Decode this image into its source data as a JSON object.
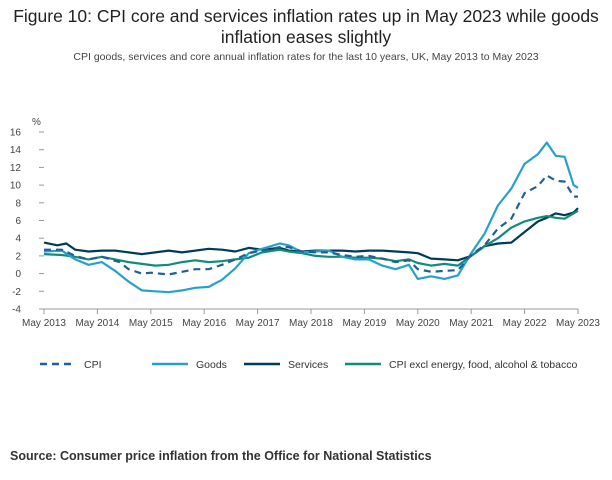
{
  "title": "Figure 10: CPI core and services inflation rates up in May 2023 while goods inflation eases slightly",
  "subtitle": "CPI goods, services and core annual inflation rates for the last 10 years, UK, May 2013 to May 2023",
  "source": "Source: Consumer price inflation from the Office for National Statistics",
  "colors": {
    "cpi": "#206095",
    "goods": "#27a0cc",
    "services": "#003c57",
    "core": "#118c7b"
  },
  "chart_data": {
    "type": "line",
    "ylabel": "%",
    "ylim": [
      -4,
      16
    ],
    "yticks": [
      -4,
      -2,
      0,
      2,
      4,
      6,
      8,
      10,
      12,
      14,
      16
    ],
    "xlim": [
      "2013-05",
      "2023-05"
    ],
    "xticks": [
      "May 2013",
      "May 2014",
      "May 2015",
      "May 2016",
      "May 2017",
      "May 2018",
      "May 2019",
      "May 2020",
      "May 2021",
      "May 2022",
      "May 2023"
    ],
    "grid": false,
    "legend_position": "bottom",
    "series": [
      {
        "name": "CPI",
        "style": "dashed",
        "color": "#206095",
        "points": [
          [
            "2013-05",
            2.7
          ],
          [
            "2013-09",
            2.7
          ],
          [
            "2013-12",
            2.0
          ],
          [
            "2014-03",
            1.6
          ],
          [
            "2014-06",
            1.9
          ],
          [
            "2014-10",
            1.3
          ],
          [
            "2014-12",
            0.5
          ],
          [
            "2015-03",
            0.0
          ],
          [
            "2015-05",
            0.1
          ],
          [
            "2015-09",
            -0.1
          ],
          [
            "2015-12",
            0.2
          ],
          [
            "2016-03",
            0.5
          ],
          [
            "2016-06",
            0.5
          ],
          [
            "2016-09",
            1.0
          ],
          [
            "2016-12",
            1.6
          ],
          [
            "2017-03",
            2.3
          ],
          [
            "2017-06",
            2.6
          ],
          [
            "2017-10",
            3.0
          ],
          [
            "2017-12",
            3.0
          ],
          [
            "2018-03",
            2.5
          ],
          [
            "2018-06",
            2.4
          ],
          [
            "2018-09",
            2.4
          ],
          [
            "2018-12",
            2.1
          ],
          [
            "2019-03",
            1.9
          ],
          [
            "2019-06",
            2.0
          ],
          [
            "2019-09",
            1.7
          ],
          [
            "2019-12",
            1.3
          ],
          [
            "2020-03",
            1.5
          ],
          [
            "2020-05",
            0.5
          ],
          [
            "2020-08",
            0.2
          ],
          [
            "2020-11",
            0.3
          ],
          [
            "2021-02",
            0.4
          ],
          [
            "2021-05",
            2.1
          ],
          [
            "2021-08",
            3.2
          ],
          [
            "2021-11",
            5.1
          ],
          [
            "2022-02",
            6.2
          ],
          [
            "2022-05",
            9.1
          ],
          [
            "2022-08",
            9.9
          ],
          [
            "2022-10",
            11.1
          ],
          [
            "2022-12",
            10.5
          ],
          [
            "2023-02",
            10.4
          ],
          [
            "2023-04",
            8.7
          ],
          [
            "2023-05",
            8.7
          ]
        ]
      },
      {
        "name": "Goods",
        "style": "solid",
        "color": "#27a0cc",
        "points": [
          [
            "2013-05",
            2.5
          ],
          [
            "2013-09",
            2.6
          ],
          [
            "2013-12",
            1.6
          ],
          [
            "2014-03",
            1.0
          ],
          [
            "2014-06",
            1.3
          ],
          [
            "2014-09",
            0.3
          ],
          [
            "2014-12",
            -0.9
          ],
          [
            "2015-03",
            -1.9
          ],
          [
            "2015-06",
            -2.0
          ],
          [
            "2015-09",
            -2.1
          ],
          [
            "2015-12",
            -1.9
          ],
          [
            "2016-03",
            -1.6
          ],
          [
            "2016-06",
            -1.5
          ],
          [
            "2016-09",
            -0.7
          ],
          [
            "2016-12",
            0.6
          ],
          [
            "2017-03",
            2.3
          ],
          [
            "2017-06",
            2.8
          ],
          [
            "2017-10",
            3.4
          ],
          [
            "2017-12",
            3.2
          ],
          [
            "2018-03",
            2.4
          ],
          [
            "2018-06",
            2.5
          ],
          [
            "2018-09",
            2.6
          ],
          [
            "2018-12",
            1.9
          ],
          [
            "2019-03",
            1.6
          ],
          [
            "2019-06",
            1.6
          ],
          [
            "2019-09",
            0.9
          ],
          [
            "2019-12",
            0.5
          ],
          [
            "2020-03",
            1.0
          ],
          [
            "2020-05",
            -0.6
          ],
          [
            "2020-08",
            -0.3
          ],
          [
            "2020-11",
            -0.6
          ],
          [
            "2021-02",
            -0.2
          ],
          [
            "2021-05",
            2.3
          ],
          [
            "2021-08",
            4.5
          ],
          [
            "2021-11",
            7.7
          ],
          [
            "2022-02",
            9.6
          ],
          [
            "2022-05",
            12.4
          ],
          [
            "2022-08",
            13.5
          ],
          [
            "2022-10",
            14.8
          ],
          [
            "2022-12",
            13.3
          ],
          [
            "2023-02",
            13.2
          ],
          [
            "2023-04",
            10.0
          ],
          [
            "2023-05",
            9.7
          ]
        ]
      },
      {
        "name": "Services",
        "style": "solid",
        "color": "#003c57",
        "points": [
          [
            "2013-05",
            3.5
          ],
          [
            "2013-08",
            3.2
          ],
          [
            "2013-10",
            3.4
          ],
          [
            "2013-12",
            2.7
          ],
          [
            "2014-03",
            2.5
          ],
          [
            "2014-06",
            2.6
          ],
          [
            "2014-09",
            2.6
          ],
          [
            "2014-12",
            2.4
          ],
          [
            "2015-03",
            2.2
          ],
          [
            "2015-06",
            2.4
          ],
          [
            "2015-09",
            2.6
          ],
          [
            "2015-12",
            2.4
          ],
          [
            "2016-03",
            2.6
          ],
          [
            "2016-06",
            2.8
          ],
          [
            "2016-09",
            2.7
          ],
          [
            "2016-12",
            2.5
          ],
          [
            "2017-03",
            2.9
          ],
          [
            "2017-06",
            2.7
          ],
          [
            "2017-10",
            2.9
          ],
          [
            "2017-12",
            2.6
          ],
          [
            "2018-03",
            2.5
          ],
          [
            "2018-06",
            2.6
          ],
          [
            "2018-09",
            2.6
          ],
          [
            "2018-12",
            2.6
          ],
          [
            "2019-03",
            2.5
          ],
          [
            "2019-06",
            2.6
          ],
          [
            "2019-09",
            2.6
          ],
          [
            "2019-12",
            2.5
          ],
          [
            "2020-03",
            2.4
          ],
          [
            "2020-05",
            2.3
          ],
          [
            "2020-08",
            1.7
          ],
          [
            "2020-11",
            1.6
          ],
          [
            "2021-02",
            1.5
          ],
          [
            "2021-05",
            2.0
          ],
          [
            "2021-08",
            3.1
          ],
          [
            "2021-11",
            3.4
          ],
          [
            "2022-02",
            3.5
          ],
          [
            "2022-05",
            4.7
          ],
          [
            "2022-08",
            5.9
          ],
          [
            "2022-10",
            6.3
          ],
          [
            "2022-12",
            6.8
          ],
          [
            "2023-02",
            6.6
          ],
          [
            "2023-04",
            6.9
          ],
          [
            "2023-05",
            7.4
          ]
        ]
      },
      {
        "name": "CPI excl energy, food, alcohol & tobacco",
        "style": "solid",
        "color": "#118c7b",
        "points": [
          [
            "2013-05",
            2.2
          ],
          [
            "2013-09",
            2.1
          ],
          [
            "2013-12",
            1.9
          ],
          [
            "2014-03",
            1.6
          ],
          [
            "2014-06",
            1.9
          ],
          [
            "2014-09",
            1.6
          ],
          [
            "2014-12",
            1.3
          ],
          [
            "2015-03",
            1.1
          ],
          [
            "2015-06",
            0.9
          ],
          [
            "2015-09",
            1.0
          ],
          [
            "2015-12",
            1.3
          ],
          [
            "2016-03",
            1.5
          ],
          [
            "2016-06",
            1.3
          ],
          [
            "2016-09",
            1.4
          ],
          [
            "2016-12",
            1.6
          ],
          [
            "2017-03",
            1.8
          ],
          [
            "2017-06",
            2.4
          ],
          [
            "2017-10",
            2.7
          ],
          [
            "2017-12",
            2.5
          ],
          [
            "2018-03",
            2.3
          ],
          [
            "2018-06",
            2.0
          ],
          [
            "2018-09",
            1.9
          ],
          [
            "2018-12",
            1.9
          ],
          [
            "2019-03",
            1.8
          ],
          [
            "2019-06",
            1.8
          ],
          [
            "2019-09",
            1.7
          ],
          [
            "2019-12",
            1.4
          ],
          [
            "2020-03",
            1.6
          ],
          [
            "2020-05",
            1.2
          ],
          [
            "2020-08",
            0.9
          ],
          [
            "2020-11",
            1.1
          ],
          [
            "2021-02",
            0.9
          ],
          [
            "2021-05",
            2.0
          ],
          [
            "2021-08",
            3.1
          ],
          [
            "2021-11",
            4.0
          ],
          [
            "2022-02",
            5.2
          ],
          [
            "2022-05",
            5.9
          ],
          [
            "2022-08",
            6.3
          ],
          [
            "2022-10",
            6.5
          ],
          [
            "2022-12",
            6.3
          ],
          [
            "2023-02",
            6.2
          ],
          [
            "2023-04",
            6.8
          ],
          [
            "2023-05",
            7.1
          ]
        ]
      }
    ]
  }
}
